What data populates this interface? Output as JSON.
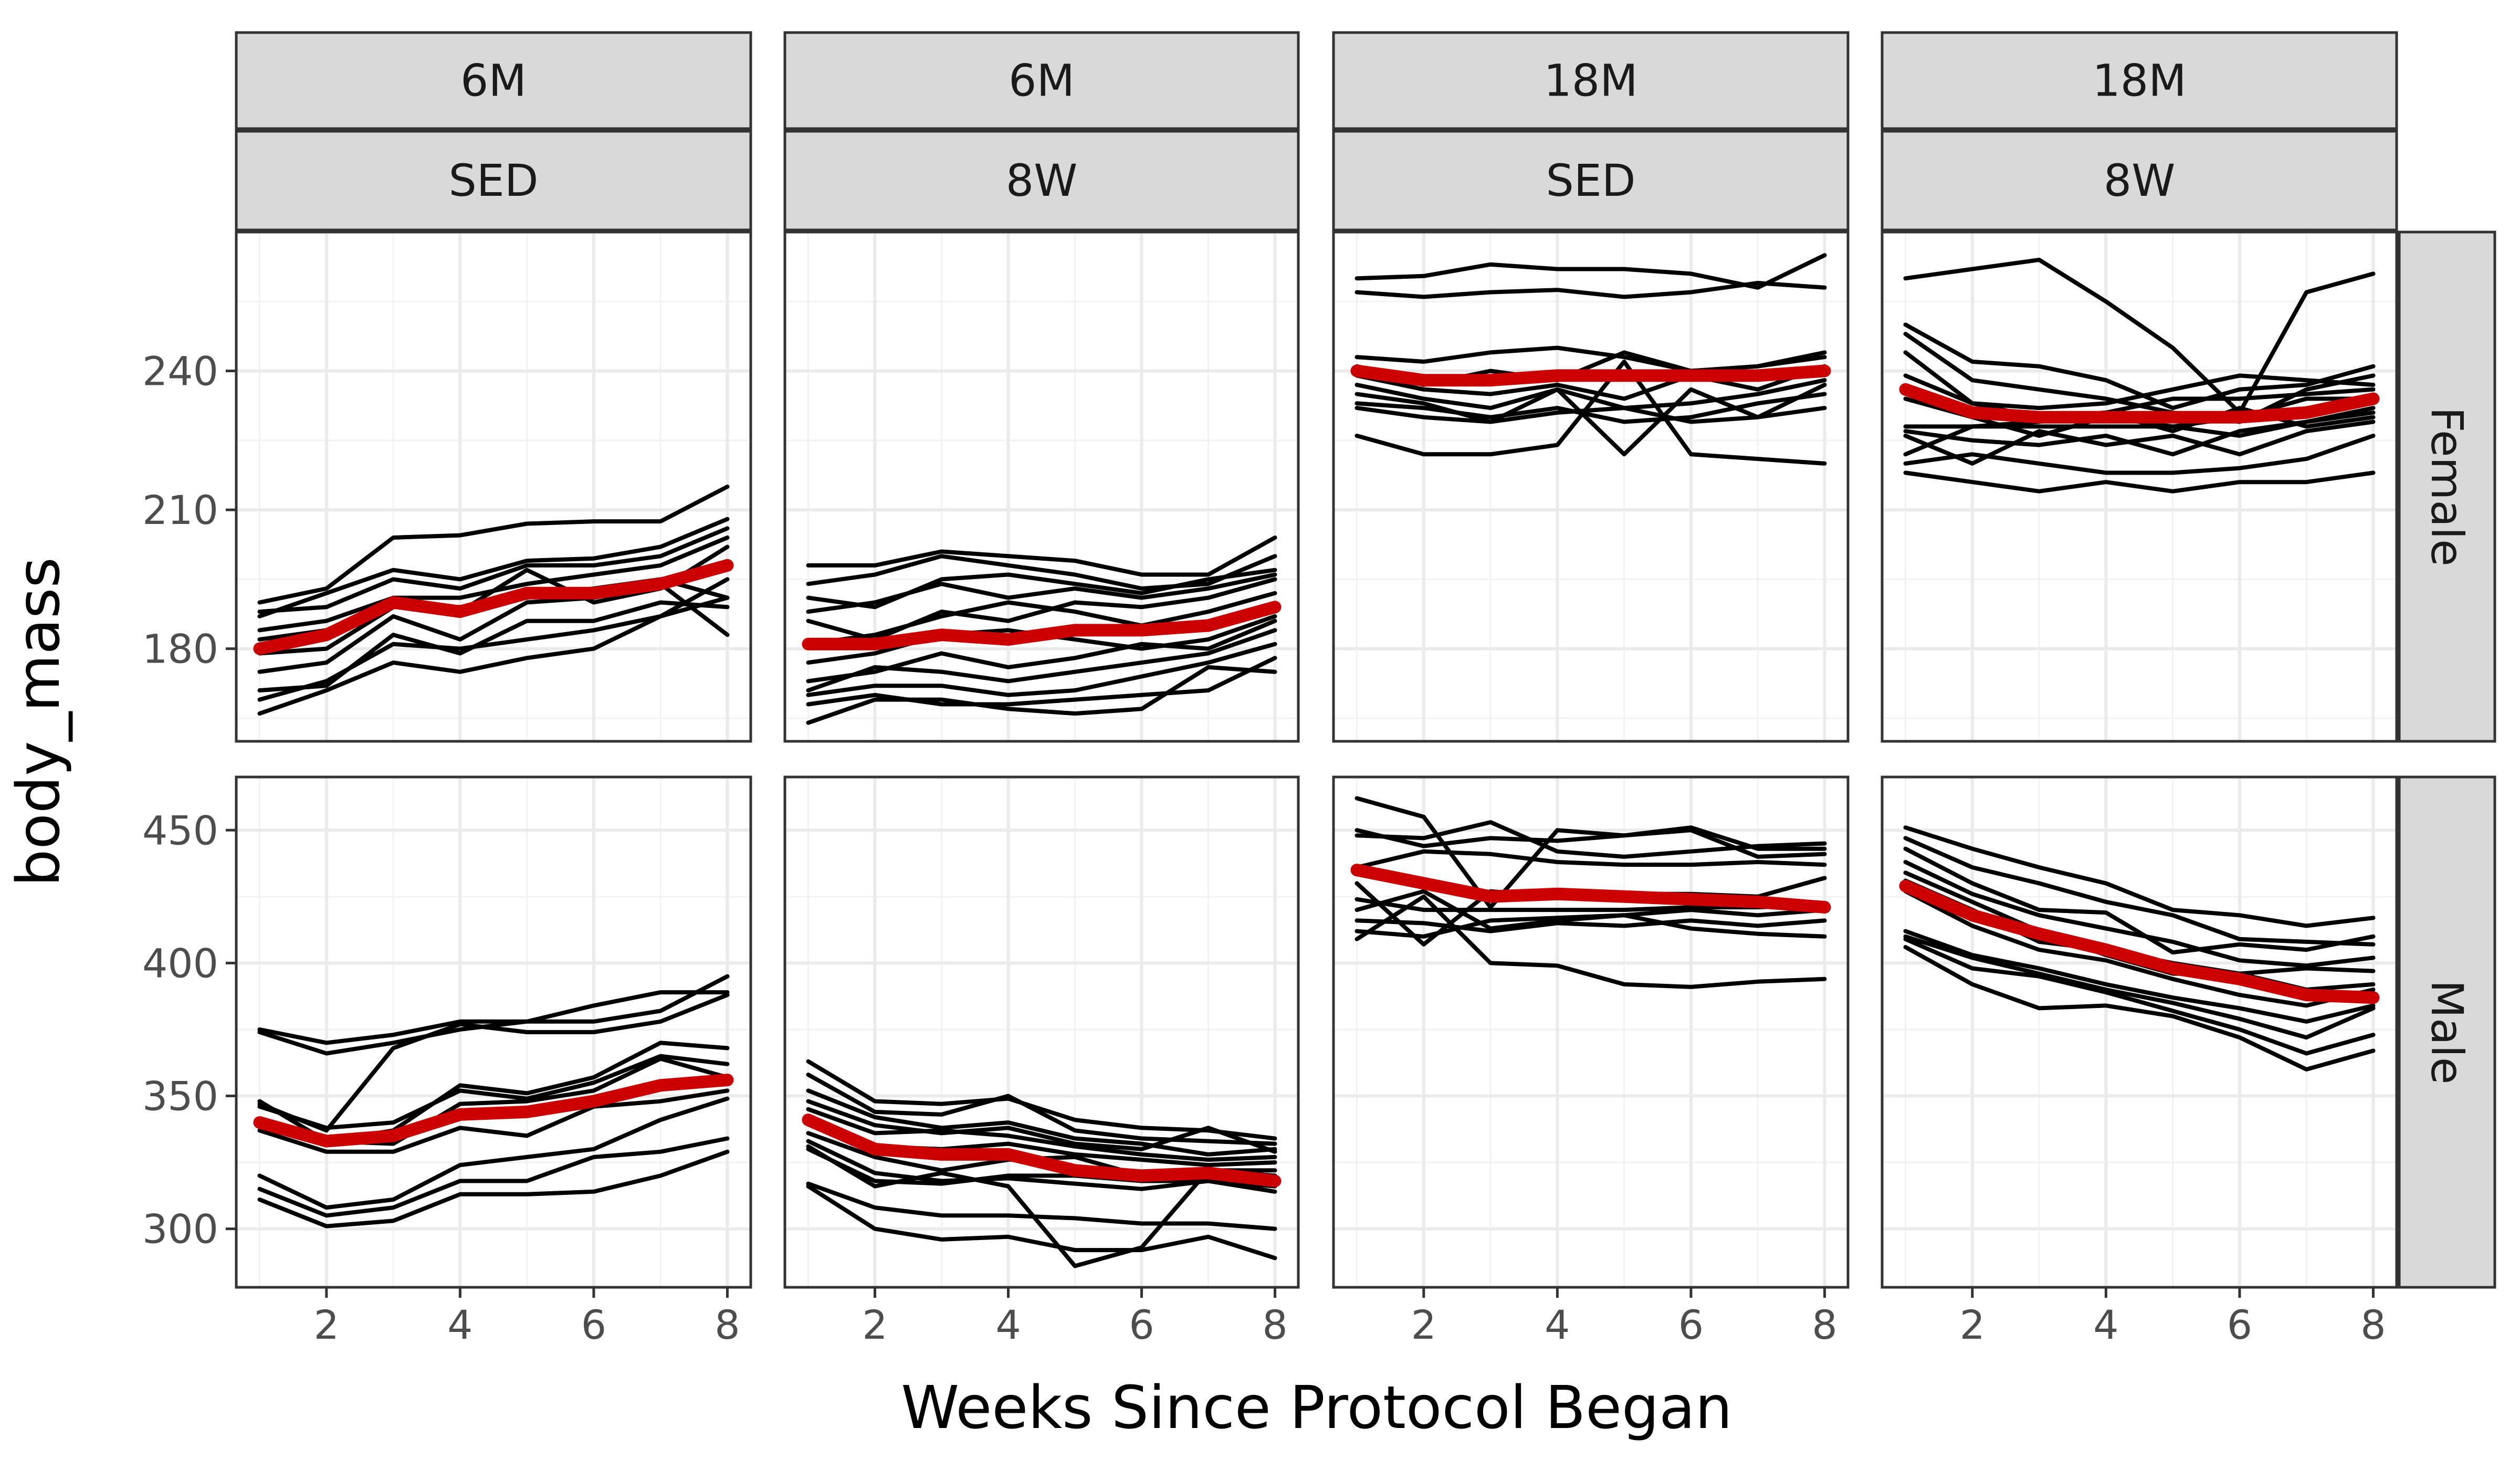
{
  "chart_data": {
    "type": "line",
    "xlabel": "Weeks Since Protocol Began",
    "ylabel": "body_mass",
    "x": [
      1,
      2,
      3,
      4,
      5,
      6,
      7,
      8
    ],
    "x_ticks": [
      2,
      4,
      6,
      8
    ],
    "xlim": [
      0.65,
      8.35
    ],
    "individual_color": "#000000",
    "mean_color": "#cc0000",
    "grid": true,
    "legend": "none",
    "columns": [
      {
        "age": "6M",
        "group": "SED"
      },
      {
        "age": "6M",
        "group": "8W"
      },
      {
        "age": "18M",
        "group": "SED"
      },
      {
        "age": "18M",
        "group": "8W"
      }
    ],
    "rows": [
      {
        "label": "Female",
        "ylim": [
          160,
          270
        ],
        "y_ticks": [
          180,
          210,
          240
        ],
        "y_tick_labels": [
          "180",
          "210",
          "240"
        ]
      },
      {
        "label": "Male",
        "ylim": [
          278,
          470
        ],
        "y_ticks": [
          300,
          350,
          400,
          450
        ],
        "y_tick_labels": [
          "300",
          "350",
          "400",
          "450"
        ]
      }
    ],
    "panels": [
      {
        "row": "Female",
        "age": "6M",
        "group": "SED",
        "mean": [
          180,
          183,
          190,
          188,
          192,
          192,
          194,
          198
        ],
        "series": [
          [
            190,
            193,
            204,
            204.5,
            207,
            207.5,
            207.5,
            215
          ],
          [
            187,
            192,
            197,
            195,
            199,
            199.5,
            202,
            208
          ],
          [
            188,
            189,
            195,
            193,
            198,
            198,
            200,
            206
          ],
          [
            184,
            186,
            191,
            191,
            194,
            196,
            198,
            204
          ],
          [
            182,
            184,
            190,
            188,
            197,
            190,
            193,
            202
          ],
          [
            179,
            180,
            189,
            189,
            191,
            193,
            195,
            191
          ],
          [
            175,
            177,
            187,
            182,
            190,
            191,
            194,
            183
          ],
          [
            171,
            172,
            183,
            179,
            186,
            186,
            190,
            189
          ],
          [
            169,
            173,
            181,
            180,
            182,
            184,
            187,
            191
          ],
          [
            166,
            171,
            177,
            175,
            178,
            180,
            187,
            195
          ]
        ]
      },
      {
        "row": "Female",
        "age": "6M",
        "group": "8W",
        "mean": [
          181,
          181,
          183,
          182,
          184,
          184,
          185,
          189
        ],
        "series": [
          [
            198,
            198,
            201,
            200,
            199,
            196,
            196,
            204
          ],
          [
            194,
            196,
            200,
            198,
            196,
            193,
            194,
            200
          ],
          [
            191,
            189,
            195,
            196,
            194,
            192,
            195,
            197
          ],
          [
            188,
            190,
            194,
            191,
            193,
            191,
            193,
            196
          ],
          [
            186,
            182,
            188,
            186,
            190,
            189,
            191,
            195
          ],
          [
            181,
            183,
            187,
            190,
            188,
            185,
            188,
            192
          ],
          [
            177,
            179,
            183,
            184,
            182,
            180,
            182,
            187
          ],
          [
            173,
            175,
            179,
            176,
            178,
            181,
            180,
            186
          ],
          [
            171,
            176,
            175,
            173,
            175,
            177,
            179,
            184
          ],
          [
            170,
            172,
            172,
            170,
            171,
            174,
            177,
            181
          ],
          [
            168,
            170,
            168,
            168,
            169,
            170,
            171,
            178
          ],
          [
            164,
            169,
            169,
            167,
            166,
            167,
            176,
            175
          ]
        ]
      },
      {
        "row": "Female",
        "age": "18M",
        "group": "SED",
        "mean": [
          240,
          238,
          238,
          239,
          239,
          239,
          239,
          240
        ],
        "series": [
          [
            260,
            260.5,
            263,
            262,
            262,
            261,
            258,
            265
          ],
          [
            257,
            256,
            257,
            257.5,
            256,
            257,
            259,
            258
          ],
          [
            243,
            242,
            244,
            245,
            243,
            240,
            241,
            244
          ],
          [
            241,
            237,
            240,
            238,
            244,
            240,
            241,
            243
          ],
          [
            239,
            236,
            235,
            237,
            234,
            239,
            236,
            241
          ],
          [
            237,
            234,
            232,
            236,
            232,
            233,
            235,
            238
          ],
          [
            235,
            233,
            229,
            236,
            222,
            236,
            230,
            237
          ],
          [
            233,
            232,
            230,
            232,
            229,
            230,
            233,
            235
          ],
          [
            232,
            230,
            229,
            231,
            232,
            229,
            230,
            232
          ],
          [
            226,
            222,
            222,
            224,
            242,
            222,
            221,
            220
          ]
        ]
      },
      {
        "row": "Female",
        "age": "18M",
        "group": "8W",
        "mean": [
          236,
          231,
          230,
          230,
          230,
          230,
          231,
          234
        ],
        "series": [
          [
            260,
            262,
            264,
            255,
            245,
            231,
            257,
            261
          ],
          [
            250,
            242,
            241,
            238,
            232,
            236,
            237,
            241
          ],
          [
            248,
            238,
            236,
            234,
            231,
            229,
            236,
            239
          ],
          [
            244,
            233,
            232,
            233,
            236,
            239,
            238,
            237
          ],
          [
            239,
            233,
            230,
            231,
            234,
            234,
            235,
            236
          ],
          [
            234,
            230,
            226,
            230,
            228,
            230,
            234,
            234
          ],
          [
            227,
            225,
            224,
            226,
            222,
            227,
            229,
            232
          ],
          [
            228,
            228,
            228,
            228,
            228,
            226,
            229,
            231
          ],
          [
            222,
            228,
            229,
            231,
            227,
            232,
            228,
            230
          ],
          [
            226,
            220,
            227,
            224,
            226,
            222,
            227,
            229
          ],
          [
            220,
            222,
            220,
            218,
            218,
            219,
            221,
            226
          ],
          [
            218,
            216,
            214,
            216,
            214,
            216,
            216,
            218
          ]
        ]
      },
      {
        "row": "Male",
        "age": "6M",
        "group": "SED",
        "mean": [
          340,
          333,
          335,
          343,
          344,
          348,
          354,
          356
        ],
        "series": [
          [
            375,
            370,
            373,
            378,
            378,
            384,
            389,
            389
          ],
          [
            374,
            366,
            370,
            375,
            378,
            378,
            382,
            395
          ],
          [
            347,
            337,
            368,
            377,
            374,
            374,
            378,
            388
          ],
          [
            348,
            333,
            337,
            354,
            351,
            357,
            370,
            368
          ],
          [
            346,
            338,
            340,
            352,
            349,
            355,
            365,
            362
          ],
          [
            341,
            333,
            332,
            347,
            348,
            352,
            364,
            357
          ],
          [
            337,
            329,
            329,
            338,
            335,
            346,
            348,
            352
          ],
          [
            320,
            308,
            311,
            324,
            327,
            330,
            341,
            349
          ],
          [
            315,
            305,
            308,
            318,
            318,
            327,
            329,
            334
          ],
          [
            311,
            301,
            303,
            313,
            313,
            314,
            320,
            329
          ]
        ]
      },
      {
        "row": "Male",
        "age": "6M",
        "group": "8W",
        "mean": [
          341,
          330,
          328,
          328,
          322,
          320,
          321,
          318
        ],
        "series": [
          [
            363,
            348,
            347,
            349,
            341,
            338,
            337,
            334
          ],
          [
            358,
            344,
            343,
            350,
            337,
            334,
            333,
            332
          ],
          [
            352,
            342,
            338,
            340,
            334,
            332,
            328,
            330
          ],
          [
            348,
            339,
            336,
            338,
            332,
            330,
            338,
            329
          ],
          [
            345,
            336,
            337,
            335,
            331,
            328,
            326,
            327
          ],
          [
            340,
            331,
            330,
            332,
            328,
            326,
            324,
            325
          ],
          [
            336,
            327,
            322,
            326,
            327,
            320,
            322,
            320
          ],
          [
            333,
            321,
            318,
            319,
            317,
            315,
            318,
            316
          ],
          [
            330,
            318,
            317,
            320,
            320,
            318,
            318,
            314
          ],
          [
            331,
            316,
            321,
            316,
            286,
            293,
            322,
            322
          ],
          [
            317,
            308,
            305,
            305,
            304,
            302,
            302,
            300
          ],
          [
            316,
            300,
            296,
            297,
            292,
            292,
            297,
            289
          ]
        ]
      },
      {
        "row": "Male",
        "age": "18M",
        "group": "SED",
        "mean": [
          435,
          430,
          425,
          426,
          425,
          424,
          423,
          421
        ],
        "series": [
          [
            462,
            455,
            421,
            450,
            448,
            451,
            443,
            443
          ],
          [
            450,
            444,
            447,
            446,
            448,
            450,
            440,
            441
          ],
          [
            448,
            447,
            453,
            442,
            440,
            442,
            444,
            445
          ],
          [
            436,
            442,
            441,
            438,
            437,
            437,
            438,
            437
          ],
          [
            430,
            407,
            427,
            425,
            426,
            426,
            425,
            432
          ],
          [
            424,
            420,
            420,
            420,
            420,
            421,
            421,
            422
          ],
          [
            420,
            427,
            413,
            416,
            418,
            420,
            418,
            420
          ],
          [
            416,
            415,
            412,
            415,
            414,
            416,
            414,
            416
          ],
          [
            409,
            425,
            400,
            399,
            392,
            391,
            393,
            394
          ],
          [
            412,
            410,
            416,
            417,
            418,
            413,
            411,
            410
          ]
        ]
      },
      {
        "row": "Male",
        "age": "18M",
        "group": "8W",
        "mean": [
          429,
          418,
          411,
          405,
          398,
          394,
          388,
          387
        ],
        "series": [
          [
            451,
            443,
            436,
            430,
            420,
            418,
            414,
            417
          ],
          [
            447,
            436,
            430,
            423,
            418,
            409,
            408,
            407
          ],
          [
            443,
            430,
            420,
            419,
            404,
            407,
            405,
            410
          ],
          [
            438,
            426,
            418,
            413,
            408,
            401,
            399,
            402
          ],
          [
            434,
            423,
            412,
            403,
            396,
            396,
            398,
            397
          ],
          [
            431,
            420,
            408,
            405,
            400,
            396,
            390,
            392
          ],
          [
            427,
            414,
            405,
            401,
            394,
            388,
            384,
            390
          ],
          [
            412,
            403,
            398,
            392,
            387,
            383,
            378,
            384
          ],
          [
            410,
            402,
            396,
            390,
            385,
            379,
            372,
            383
          ],
          [
            409,
            398,
            395,
            389,
            382,
            375,
            366,
            373
          ],
          [
            406,
            392,
            383,
            384,
            380,
            372,
            360,
            367
          ]
        ]
      }
    ]
  }
}
